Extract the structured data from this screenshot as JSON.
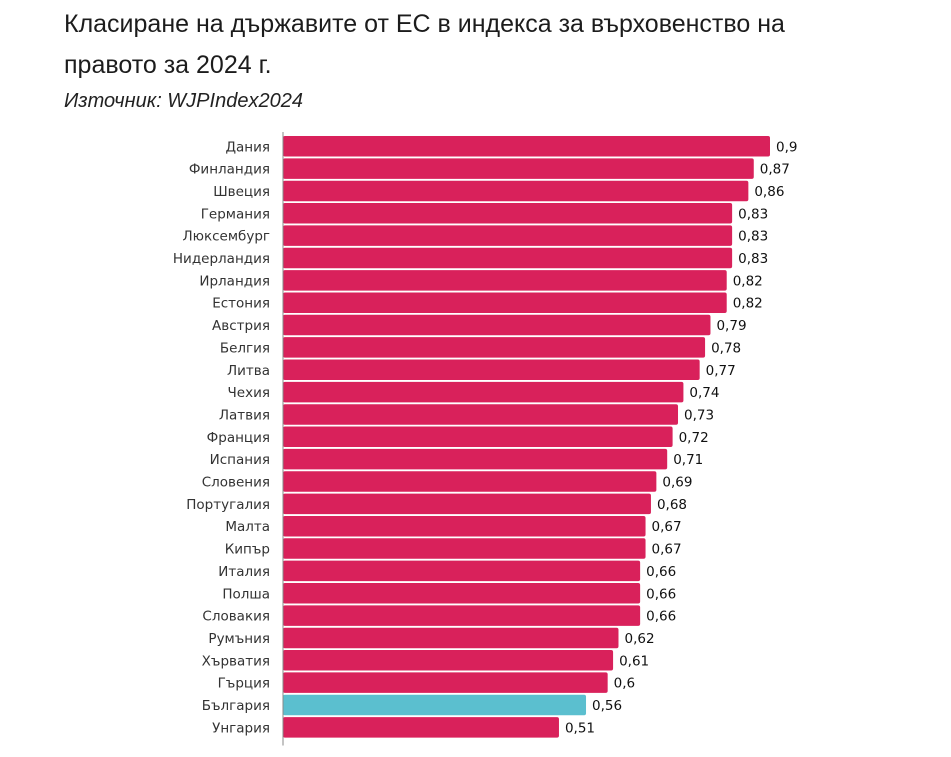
{
  "header": {
    "title": "Класиране на държавите от ЕС в индекса за върховенство на правото за 2024 г.",
    "source": "Източник: WJPIndex2024"
  },
  "colors": {
    "default_bar": "#d9215b",
    "highlight_bar": "#5bbfcf",
    "axis": "#888888"
  },
  "chart_data": {
    "type": "bar",
    "orientation": "horizontal",
    "title": "Класиране на държавите от ЕС в индекса за върховенство на правото за 2024 г.",
    "subtitle": "Източник: WJPIndex2024",
    "xlabel": "",
    "ylabel": "",
    "xlim": [
      0,
      0.9
    ],
    "grid": false,
    "legend": "none",
    "decimal_separator": ",",
    "highlight": "България",
    "categories": [
      "Дания",
      "Финландия",
      "Швеция",
      "Германия",
      "Люксембург",
      "Нидерландия",
      "Ирландия",
      "Естония",
      "Австрия",
      "Белгия",
      "Литва",
      "Чехия",
      "Латвия",
      "Франция",
      "Испания",
      "Словения",
      "Португалия",
      "Малта",
      "Кипър",
      "Италия",
      "Полша",
      "Словакия",
      "Румъния",
      "Хърватия",
      "Гърция",
      "България",
      "Унгария"
    ],
    "values": [
      0.9,
      0.87,
      0.86,
      0.83,
      0.83,
      0.83,
      0.82,
      0.82,
      0.79,
      0.78,
      0.77,
      0.74,
      0.73,
      0.72,
      0.71,
      0.69,
      0.68,
      0.67,
      0.67,
      0.66,
      0.66,
      0.66,
      0.62,
      0.61,
      0.6,
      0.56,
      0.51
    ],
    "value_labels": [
      "0,9",
      "0,87",
      "0,86",
      "0,83",
      "0,83",
      "0,83",
      "0,82",
      "0,82",
      "0,79",
      "0,78",
      "0,77",
      "0,74",
      "0,73",
      "0,72",
      "0,71",
      "0,69",
      "0,68",
      "0,67",
      "0,67",
      "0,66",
      "0,66",
      "0,66",
      "0,62",
      "0,61",
      "0,6",
      "0,56",
      "0,51"
    ]
  }
}
